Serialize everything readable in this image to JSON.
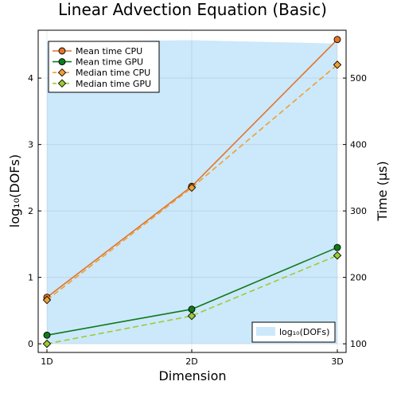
{
  "chart_data": {
    "type": "line",
    "title": "Linear Advection Equation (Basic)",
    "xlabel": "Dimension",
    "ylabel_left": "log₁₀(DOFs)",
    "ylabel_right": "Time (µs)",
    "categories": [
      "1D",
      "2D",
      "3D"
    ],
    "ylim_left": [
      -0.13,
      4.72
    ],
    "yticks_left": [
      "0",
      "1",
      "2",
      "3",
      "4"
    ],
    "ylim_right": [
      87,
      572
    ],
    "yticks_right": [
      "100",
      "200",
      "300",
      "400",
      "500"
    ],
    "area_series": {
      "name": "log₁₀(DOFs)",
      "axis": "left",
      "values": [
        4.55,
        4.57,
        4.52
      ],
      "color": "#cce8fb"
    },
    "series": [
      {
        "name": "Mean time CPU",
        "axis": "right",
        "values": [
          170,
          337,
          558
        ],
        "color": "#e0752b",
        "marker": "circle",
        "dash": "solid"
      },
      {
        "name": "Mean time GPU",
        "axis": "right",
        "values": [
          113,
          152,
          245
        ],
        "color": "#0f7a1a",
        "marker": "circle",
        "dash": "solid"
      },
      {
        "name": "Median time CPU",
        "axis": "right",
        "values": [
          166,
          335,
          520
        ],
        "color": "#f0a030",
        "marker": "diamond",
        "dash": "dashed"
      },
      {
        "name": "Median time GPU",
        "axis": "right",
        "values": [
          100,
          142,
          233
        ],
        "color": "#9acd32",
        "marker": "diamond",
        "dash": "dashed"
      }
    ],
    "grid": true,
    "legend_placement": "top-left",
    "area_legend_placement": "bottom-right"
  }
}
